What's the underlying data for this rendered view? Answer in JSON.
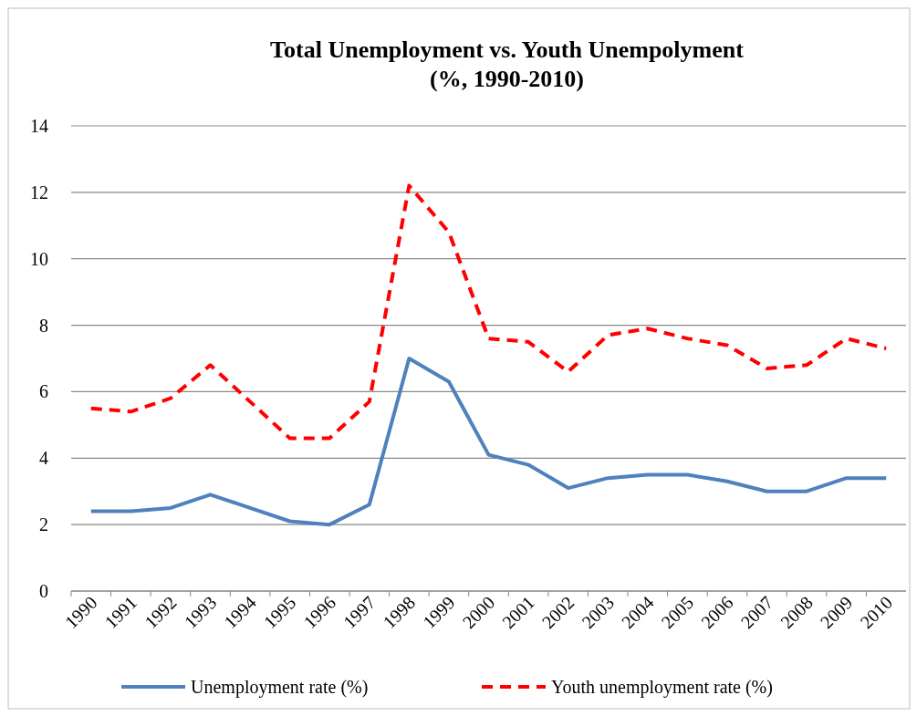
{
  "chart_data": {
    "type": "line",
    "title": "Total Unemployment vs. Youth Unempolyment\n(%, 1990-2010)",
    "categories": [
      "1990",
      "1991",
      "1992",
      "1993",
      "1994",
      "1995",
      "1996",
      "1997",
      "1998",
      "1999",
      "2000",
      "2001",
      "2002",
      "2003",
      "2004",
      "2005",
      "2006",
      "2007",
      "2008",
      "2009",
      "2010"
    ],
    "series": [
      {
        "name": "Unemployment rate (%)",
        "color": "#4f81bd",
        "line_style": "solid",
        "values": [
          2.4,
          2.4,
          2.5,
          2.9,
          2.5,
          2.1,
          2.0,
          2.6,
          7.0,
          6.3,
          4.1,
          3.8,
          3.1,
          3.4,
          3.5,
          3.5,
          3.3,
          3.0,
          3.0,
          3.4,
          3.4
        ]
      },
      {
        "name": "Youth unemployment rate (%)",
        "color": "#ff0000",
        "line_style": "dashed",
        "values": [
          5.5,
          5.4,
          5.8,
          6.8,
          5.7,
          4.6,
          4.6,
          5.7,
          12.2,
          10.8,
          7.6,
          7.5,
          6.6,
          7.7,
          7.9,
          7.6,
          7.4,
          6.7,
          6.8,
          7.6,
          7.3
        ]
      }
    ],
    "ylim": [
      0,
      14
    ],
    "yticks": [
      0,
      2,
      4,
      6,
      8,
      10,
      12,
      14
    ],
    "grid": "y",
    "legend": "bottom",
    "marker": "none"
  }
}
